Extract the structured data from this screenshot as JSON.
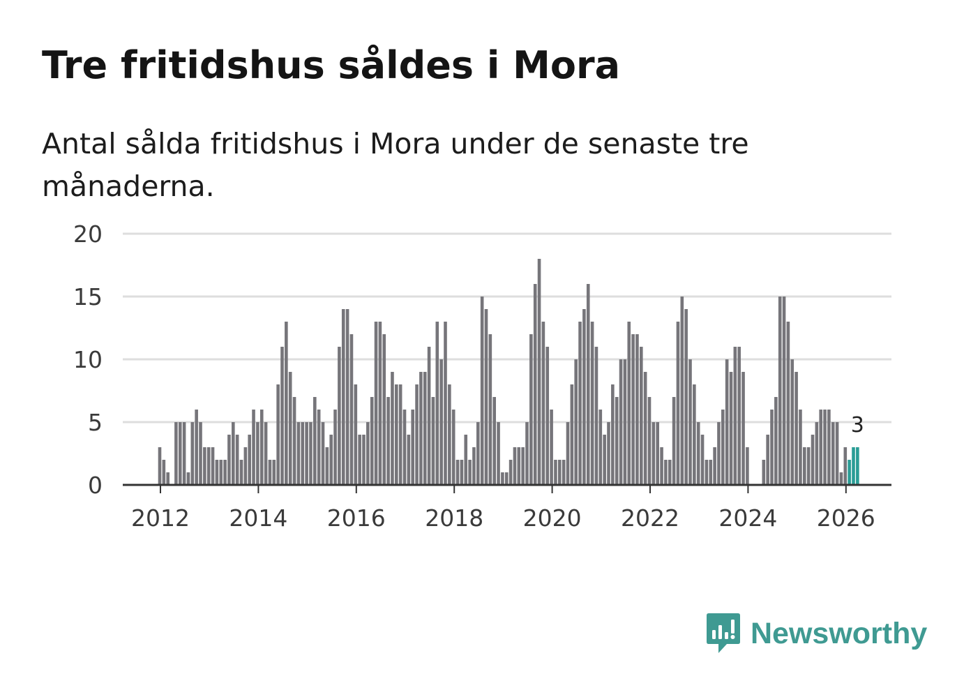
{
  "colors": {
    "bar": "#76757a",
    "highlight": "#2a9d96",
    "grid": "#dedede",
    "axis": "#333333",
    "brand": "#3f9a92"
  },
  "brand": {
    "name": "Newsworthy",
    "icon": "bar-chart-speech-icon"
  },
  "chart_data": {
    "type": "bar",
    "title": "Tre fritidshus såldes i Mora",
    "subtitle": "Antal sålda fritidshus i Mora under de senaste tre månaderna.",
    "xlabel": "",
    "ylabel": "",
    "ylim": [
      0,
      20
    ],
    "yticks": [
      0,
      5,
      10,
      15,
      20
    ],
    "xticks": [
      "2012",
      "2014",
      "2016",
      "2018",
      "2020",
      "2022",
      "2024",
      "2026"
    ],
    "start": "2012-01",
    "frequency": "monthly",
    "values": [
      3,
      2,
      1,
      0,
      5,
      5,
      5,
      1,
      5,
      6,
      5,
      3,
      3,
      3,
      2,
      2,
      2,
      4,
      5,
      4,
      2,
      3,
      4,
      6,
      5,
      6,
      5,
      2,
      2,
      8,
      11,
      13,
      9,
      7,
      5,
      5,
      5,
      5,
      7,
      6,
      5,
      3,
      4,
      6,
      11,
      14,
      14,
      12,
      8,
      4,
      4,
      5,
      7,
      13,
      13,
      12,
      7,
      9,
      8,
      8,
      6,
      4,
      6,
      8,
      9,
      9,
      11,
      7,
      13,
      10,
      13,
      8,
      6,
      2,
      2,
      4,
      2,
      3,
      5,
      15,
      14,
      12,
      7,
      5,
      1,
      1,
      2,
      3,
      3,
      3,
      5,
      12,
      16,
      18,
      13,
      11,
      6,
      2,
      2,
      2,
      5,
      8,
      10,
      13,
      14,
      16,
      13,
      11,
      6,
      4,
      5,
      8,
      7,
      10,
      10,
      13,
      12,
      12,
      11,
      9,
      7,
      5,
      5,
      3,
      2,
      2,
      7,
      13,
      15,
      14,
      10,
      8,
      5,
      4,
      2,
      2,
      3,
      5,
      6,
      10,
      9,
      11,
      11,
      9,
      3,
      0,
      0,
      0,
      2,
      4,
      6,
      7,
      15,
      15,
      13,
      10,
      9,
      6,
      3,
      3,
      4,
      5,
      6,
      6,
      6,
      5,
      5,
      1,
      3,
      2,
      3,
      3
    ],
    "highlight_last": 3,
    "annotation": "3"
  }
}
